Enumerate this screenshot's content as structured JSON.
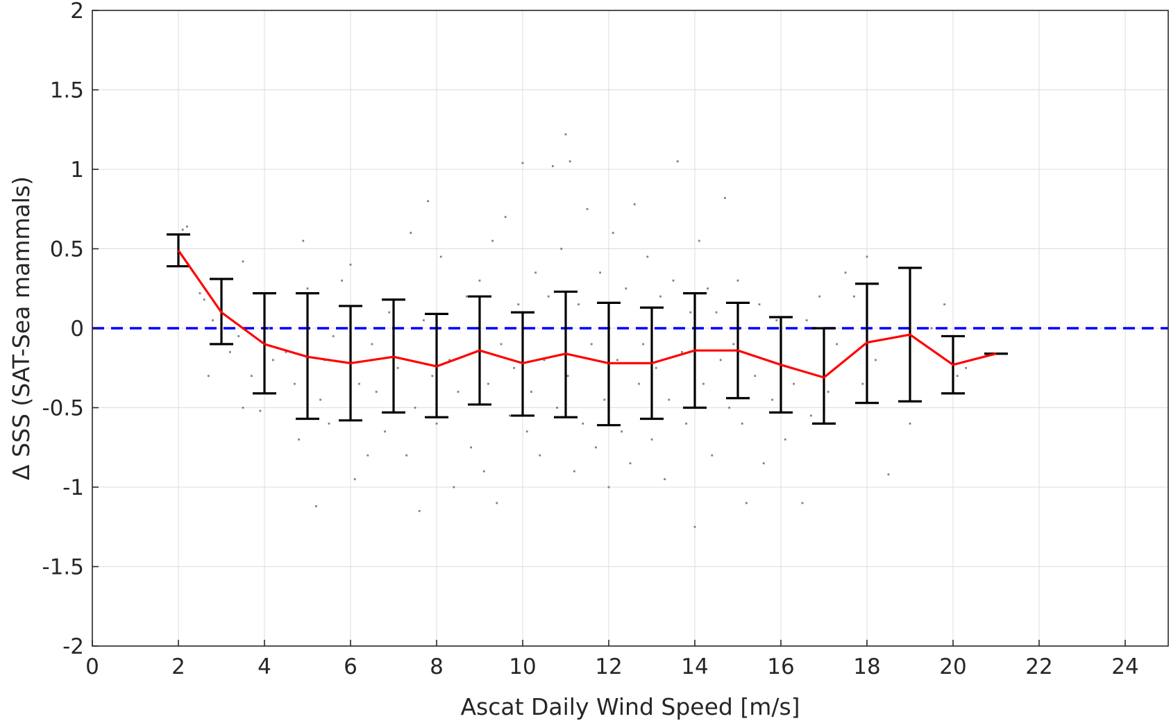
{
  "chart_data": {
    "type": "scatter",
    "title": "",
    "xlabel": "Ascat Daily Wind Speed [m/s]",
    "ylabel": "Δ SSS (SAT-Sea mammals)",
    "xlim": [
      0,
      25
    ],
    "ylim": [
      -2,
      2
    ],
    "xticks": [
      0,
      2,
      4,
      6,
      8,
      10,
      12,
      14,
      16,
      18,
      20,
      22,
      24
    ],
    "yticks": [
      2,
      1.5,
      1,
      0.5,
      0,
      -0.5,
      -1,
      -1.5,
      -2
    ],
    "xtick_labels": [
      "0",
      "2",
      "4",
      "6",
      "8",
      "10",
      "12",
      "14",
      "16",
      "18",
      "20",
      "22",
      "24"
    ],
    "ytick_labels": [
      "2",
      "1.5",
      "1",
      "0.5",
      "0",
      "-0.5",
      "-1",
      "-1.5",
      "-2"
    ],
    "grid": true,
    "legend": "none",
    "reference_line": {
      "y": 0,
      "style": "dashed",
      "color": "#0000ff"
    },
    "scatter_points": {
      "description_color": "#808080",
      "points": [
        [
          2.1,
          0.62
        ],
        [
          2.2,
          0.64
        ],
        [
          2.5,
          0.22
        ],
        [
          2.6,
          0.18
        ],
        [
          2.7,
          -0.3
        ],
        [
          2.8,
          0.05
        ],
        [
          3.0,
          0.0
        ],
        [
          3.2,
          -0.15
        ],
        [
          3.4,
          -0.05
        ],
        [
          3.5,
          0.42
        ],
        [
          3.5,
          -0.5
        ],
        [
          3.7,
          -0.3
        ],
        [
          3.9,
          -0.52
        ],
        [
          4.1,
          0.0
        ],
        [
          4.2,
          -0.2
        ],
        [
          4.5,
          -0.15
        ],
        [
          4.7,
          -0.35
        ],
        [
          4.8,
          -0.7
        ],
        [
          4.9,
          0.55
        ],
        [
          5.0,
          0.25
        ],
        [
          5.2,
          -1.12
        ],
        [
          5.3,
          -0.45
        ],
        [
          5.4,
          -0.2
        ],
        [
          5.5,
          -0.6
        ],
        [
          5.6,
          -0.05
        ],
        [
          5.8,
          0.3
        ],
        [
          6.0,
          0.4
        ],
        [
          6.1,
          -0.95
        ],
        [
          6.2,
          -0.35
        ],
        [
          6.4,
          -0.8
        ],
        [
          6.5,
          -0.1
        ],
        [
          6.6,
          -0.4
        ],
        [
          6.8,
          -0.65
        ],
        [
          6.9,
          0.1
        ],
        [
          7.0,
          -0.45
        ],
        [
          7.1,
          -0.25
        ],
        [
          7.3,
          -0.8
        ],
        [
          7.4,
          0.6
        ],
        [
          7.5,
          -0.5
        ],
        [
          7.6,
          -1.15
        ],
        [
          7.7,
          0.05
        ],
        [
          7.8,
          0.8
        ],
        [
          7.9,
          -0.3
        ],
        [
          8.0,
          -0.6
        ],
        [
          8.1,
          0.45
        ],
        [
          8.3,
          -0.2
        ],
        [
          8.4,
          -1.0
        ],
        [
          8.5,
          -0.4
        ],
        [
          8.7,
          0.2
        ],
        [
          8.8,
          -0.75
        ],
        [
          8.9,
          -0.15
        ],
        [
          9.0,
          0.3
        ],
        [
          9.1,
          -0.9
        ],
        [
          9.2,
          -0.35
        ],
        [
          9.3,
          0.55
        ],
        [
          9.4,
          -1.1
        ],
        [
          9.5,
          -0.1
        ],
        [
          9.6,
          0.7
        ],
        [
          9.7,
          -0.55
        ],
        [
          9.8,
          -0.25
        ],
        [
          9.9,
          0.15
        ],
        [
          10.0,
          1.04
        ],
        [
          10.1,
          -0.65
        ],
        [
          10.2,
          -0.4
        ],
        [
          10.3,
          0.35
        ],
        [
          10.4,
          -0.8
        ],
        [
          10.5,
          -0.2
        ],
        [
          10.6,
          0.2
        ],
        [
          10.7,
          1.02
        ],
        [
          10.8,
          -0.5
        ],
        [
          10.9,
          0.5
        ],
        [
          11.0,
          1.22
        ],
        [
          11.05,
          -0.3
        ],
        [
          11.1,
          1.05
        ],
        [
          11.2,
          -0.9
        ],
        [
          11.3,
          0.15
        ],
        [
          11.4,
          -0.6
        ],
        [
          11.5,
          0.75
        ],
        [
          11.6,
          -0.1
        ],
        [
          11.7,
          -0.75
        ],
        [
          11.8,
          0.35
        ],
        [
          11.9,
          -0.45
        ],
        [
          12.0,
          -1.0
        ],
        [
          12.1,
          0.6
        ],
        [
          12.2,
          -0.2
        ],
        [
          12.3,
          -0.65
        ],
        [
          12.4,
          0.25
        ],
        [
          12.5,
          -0.85
        ],
        [
          12.6,
          0.78
        ],
        [
          12.7,
          -0.35
        ],
        [
          12.8,
          -0.1
        ],
        [
          12.9,
          0.45
        ],
        [
          13.0,
          -0.7
        ],
        [
          13.1,
          -0.25
        ],
        [
          13.2,
          0.2
        ],
        [
          13.3,
          -0.95
        ],
        [
          13.4,
          -0.45
        ],
        [
          13.5,
          0.3
        ],
        [
          13.6,
          1.05
        ],
        [
          13.7,
          -0.15
        ],
        [
          13.8,
          -0.6
        ],
        [
          13.9,
          0.1
        ],
        [
          14.0,
          -1.25
        ],
        [
          14.1,
          0.55
        ],
        [
          14.2,
          -0.35
        ],
        [
          14.3,
          0.25
        ],
        [
          14.4,
          -0.8
        ],
        [
          14.5,
          0.1
        ],
        [
          14.6,
          -0.2
        ],
        [
          14.7,
          0.82
        ],
        [
          14.8,
          -0.5
        ],
        [
          14.9,
          -0.1
        ],
        [
          15.0,
          0.3
        ],
        [
          15.1,
          -0.6
        ],
        [
          15.2,
          -1.1
        ],
        [
          15.4,
          -0.3
        ],
        [
          15.5,
          0.15
        ],
        [
          15.6,
          -0.85
        ],
        [
          15.8,
          -0.45
        ],
        [
          15.9,
          0.05
        ],
        [
          16.1,
          -0.7
        ],
        [
          16.3,
          -0.35
        ],
        [
          16.5,
          -1.1
        ],
        [
          16.6,
          0.05
        ],
        [
          16.7,
          -0.55
        ],
        [
          16.9,
          0.2
        ],
        [
          17.1,
          -0.4
        ],
        [
          17.3,
          -0.1
        ],
        [
          17.5,
          0.35
        ],
        [
          17.7,
          0.2
        ],
        [
          17.9,
          -0.35
        ],
        [
          18.0,
          0.45
        ],
        [
          18.2,
          -0.2
        ],
        [
          18.5,
          -0.92
        ],
        [
          19.0,
          -0.6
        ],
        [
          19.5,
          0.0
        ],
        [
          19.8,
          0.15
        ],
        [
          20.1,
          -0.3
        ],
        [
          20.3,
          -0.25
        ]
      ]
    },
    "series": [
      {
        "color": "#ff0000",
        "x": [
          2,
          3,
          4,
          5,
          6,
          7,
          8,
          9,
          10,
          11,
          12,
          13,
          14,
          15,
          16,
          17,
          18,
          19,
          20,
          21
        ],
        "y": [
          0.49,
          0.1,
          -0.1,
          -0.18,
          -0.22,
          -0.18,
          -0.24,
          -0.14,
          -0.22,
          -0.16,
          -0.22,
          -0.22,
          -0.14,
          -0.14,
          -0.23,
          -0.31,
          -0.09,
          -0.04,
          -0.23,
          -0.16
        ]
      }
    ],
    "error_bars": {
      "color": "#000000",
      "x": [
        2,
        3,
        4,
        5,
        6,
        7,
        8,
        9,
        10,
        11,
        12,
        13,
        14,
        15,
        16,
        17,
        18,
        19,
        20,
        21
      ],
      "upper": [
        0.59,
        0.31,
        0.22,
        0.22,
        0.14,
        0.18,
        0.09,
        0.2,
        0.1,
        0.23,
        0.16,
        0.13,
        0.22,
        0.16,
        0.07,
        0.0,
        0.28,
        0.38,
        -0.05,
        -0.16
      ],
      "lower": [
        0.39,
        -0.1,
        -0.41,
        -0.57,
        -0.58,
        -0.53,
        -0.56,
        -0.48,
        -0.55,
        -0.56,
        -0.61,
        -0.57,
        -0.5,
        -0.44,
        -0.53,
        -0.6,
        -0.47,
        -0.46,
        -0.41,
        -0.16
      ]
    }
  }
}
